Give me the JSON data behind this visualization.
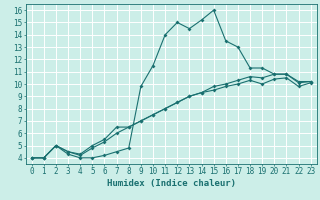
{
  "xlabel": "Humidex (Indice chaleur)",
  "xlim": [
    -0.5,
    23.5
  ],
  "ylim": [
    3.5,
    16.5
  ],
  "xticks": [
    0,
    1,
    2,
    3,
    4,
    5,
    6,
    7,
    8,
    9,
    10,
    11,
    12,
    13,
    14,
    15,
    16,
    17,
    18,
    19,
    20,
    21,
    22,
    23
  ],
  "yticks": [
    4,
    5,
    6,
    7,
    8,
    9,
    10,
    11,
    12,
    13,
    14,
    15,
    16
  ],
  "bg_color": "#cceee8",
  "line_color": "#1a7070",
  "grid_color": "#ffffff",
  "line1_x": [
    0,
    1,
    2,
    3,
    4,
    5,
    6,
    7,
    8,
    9,
    10,
    11,
    12,
    13,
    14,
    15,
    16,
    17,
    18,
    19,
    20,
    21,
    22,
    23
  ],
  "line1_y": [
    4,
    4,
    5,
    4.3,
    4.0,
    4.0,
    4.2,
    4.5,
    4.8,
    9.8,
    11.5,
    14.0,
    15.0,
    14.5,
    15.2,
    16.0,
    13.5,
    13.0,
    11.3,
    11.3,
    10.8,
    10.8,
    10.2,
    10.2
  ],
  "line2_x": [
    0,
    1,
    2,
    3,
    4,
    5,
    6,
    7,
    8,
    9,
    10,
    11,
    12,
    13,
    14,
    15,
    16,
    17,
    18,
    19,
    20,
    21,
    22,
    23
  ],
  "line2_y": [
    4,
    4,
    5,
    4.5,
    4.3,
    5.0,
    5.5,
    6.5,
    6.5,
    7.0,
    7.5,
    8.0,
    8.5,
    9.0,
    9.3,
    9.8,
    10.0,
    10.3,
    10.6,
    10.5,
    10.8,
    10.8,
    10.1,
    10.2
  ],
  "line3_x": [
    0,
    1,
    2,
    3,
    4,
    5,
    6,
    7,
    8,
    9,
    10,
    11,
    12,
    13,
    14,
    15,
    16,
    17,
    18,
    19,
    20,
    21,
    22,
    23
  ],
  "line3_y": [
    4,
    4,
    5,
    4.5,
    4.2,
    4.8,
    5.3,
    6.0,
    6.5,
    7.0,
    7.5,
    8.0,
    8.5,
    9.0,
    9.3,
    9.5,
    9.8,
    10.0,
    10.3,
    10.0,
    10.4,
    10.5,
    9.8,
    10.1
  ]
}
